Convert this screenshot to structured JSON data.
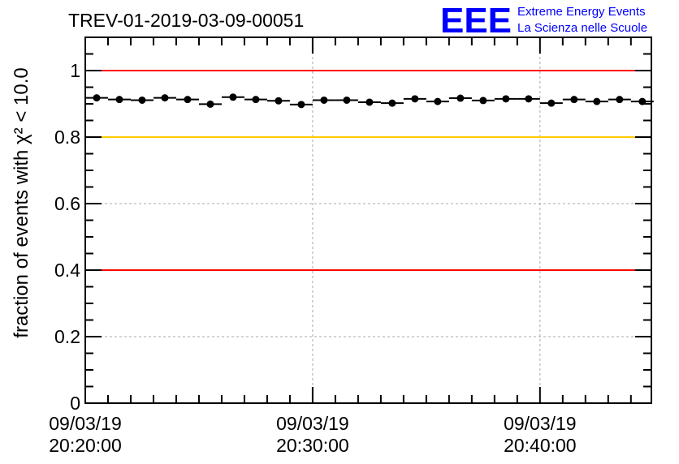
{
  "title": "TREV-01-2019-03-09-00051",
  "logo": {
    "text": "EEE",
    "line1": "Extreme Energy Events",
    "line2": "La Scienza nelle Scuole",
    "color": "#0000ff"
  },
  "chart_data": {
    "type": "scatter",
    "title": "TREV-01-2019-03-09-00051",
    "xlabel": "",
    "ylabel": "fraction of events with χ² < 10.0",
    "x_unit": "minutes after 09/03/19 20:20:00",
    "xlim": [
      0,
      24.9
    ],
    "ylim": [
      0,
      1.1
    ],
    "grid": true,
    "x_ticks": [
      {
        "value": 0,
        "date": "09/03/19",
        "time": "20:20:00"
      },
      {
        "value": 10,
        "date": "09/03/19",
        "time": "20:30:00"
      },
      {
        "value": 20,
        "date": "09/03/19",
        "time": "20:40:00"
      }
    ],
    "y_ticks": [
      {
        "value": 0,
        "label": "0"
      },
      {
        "value": 0.2,
        "label": "0.2"
      },
      {
        "value": 0.4,
        "label": "0.4"
      },
      {
        "value": 0.6,
        "label": "0.6"
      },
      {
        "value": 0.8,
        "label": "0.8"
      },
      {
        "value": 1,
        "label": "1"
      }
    ],
    "bin_width": 1,
    "x": [
      0.5,
      1.5,
      2.5,
      3.5,
      4.5,
      5.5,
      6.5,
      7.5,
      8.5,
      9.5,
      10.5,
      11.5,
      12.5,
      13.5,
      14.5,
      15.5,
      16.5,
      17.5,
      18.5,
      19.5,
      20.5,
      21.5,
      22.5,
      23.5,
      24.5
    ],
    "y": [
      0.918,
      0.913,
      0.911,
      0.918,
      0.913,
      0.899,
      0.92,
      0.913,
      0.909,
      0.898,
      0.911,
      0.911,
      0.905,
      0.902,
      0.915,
      0.907,
      0.917,
      0.91,
      0.915,
      0.915,
      0.902,
      0.913,
      0.907,
      0.913,
      0.907
    ],
    "reference_lines": [
      {
        "value": 1.0,
        "color": "#ff0000"
      },
      {
        "value": 0.8,
        "color": "#ffcc00"
      },
      {
        "value": 0.4,
        "color": "#ff0000"
      }
    ]
  }
}
